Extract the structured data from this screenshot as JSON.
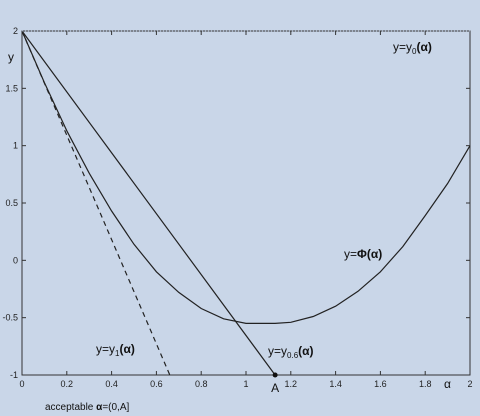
{
  "chart_data": {
    "type": "line",
    "xlabel": "α",
    "ylabel": "y",
    "xlim": [
      0,
      2
    ],
    "ylim": [
      -1,
      2
    ],
    "grid": false,
    "x_ticks": [
      "0",
      "0.2",
      "0.4",
      "0.6",
      "0.8",
      "1",
      "1.2",
      "1.4",
      "1.6",
      "1.8",
      "2"
    ],
    "y_ticks": [
      "-1",
      "-0.5",
      "0",
      "0.5",
      "1",
      "1.5",
      "2"
    ],
    "series": [
      {
        "style": "solid",
        "x": [
          0,
          0.1,
          0.2,
          0.3,
          0.4,
          0.5,
          0.6,
          0.7,
          0.8,
          0.9,
          1.0,
          1.1,
          1.13,
          1.2,
          1.3,
          1.4,
          1.5,
          1.6,
          1.7,
          1.8,
          1.9,
          2.0
        ],
        "y": [
          2,
          1.55,
          1.13,
          0.76,
          0.43,
          0.14,
          -0.1,
          -0.28,
          -0.42,
          -0.51,
          -0.55,
          -0.55,
          -0.55,
          -0.54,
          -0.49,
          -0.4,
          -0.27,
          -0.1,
          0.12,
          0.39,
          0.67,
          1.0
        ]
      },
      {
        "style": "solid",
        "x": [
          0,
          1.13
        ],
        "y": [
          2,
          -1
        ]
      },
      {
        "style": "dashed",
        "x": [
          0,
          0.66
        ],
        "y": [
          2,
          -1
        ]
      },
      {
        "style": "dotted",
        "x": [
          0,
          2
        ],
        "y": [
          2,
          2
        ]
      }
    ],
    "annotations": {
      "y0": {
        "prefix": "y=y",
        "sub": "0",
        "arg": "(α)"
      },
      "phi": {
        "prefix": "y=",
        "sym": "Φ",
        "arg": "(α)"
      },
      "y1": {
        "prefix": "y=y",
        "sub": "1",
        "arg": "(α)"
      },
      "y06": {
        "prefix": "y=y",
        "sub": "0.6",
        "arg": "(α)"
      },
      "pointA": {
        "x": 1.13,
        "y": -1,
        "label": "A"
      },
      "caption": {
        "text": "acceptable ",
        "alpha": "α",
        "rest": "=(0,A]"
      }
    }
  }
}
